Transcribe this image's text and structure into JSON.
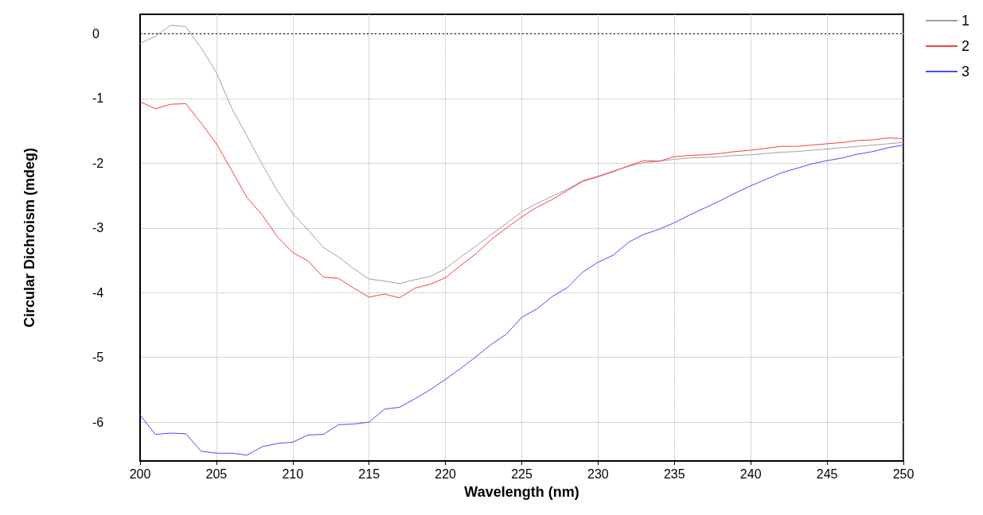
{
  "chart_data": {
    "type": "line",
    "xlabel": "Wavelength (nm)",
    "ylabel": "Circular Dichroism (mdeg)",
    "x": [
      200,
      201,
      202,
      203,
      204,
      205,
      206,
      207,
      208,
      209,
      210,
      211,
      212,
      213,
      214,
      215,
      216,
      217,
      218,
      219,
      220,
      221,
      222,
      223,
      224,
      225,
      226,
      227,
      228,
      229,
      230,
      231,
      232,
      233,
      234,
      235,
      236,
      237,
      238,
      239,
      240,
      241,
      242,
      243,
      244,
      245,
      246,
      247,
      248,
      249,
      250
    ],
    "series": [
      {
        "name": "1",
        "color": "#a0a0a0",
        "values": [
          -0.15,
          -0.04,
          0.13,
          0.11,
          -0.22,
          -0.6,
          -1.15,
          -1.58,
          -2.02,
          -2.43,
          -2.78,
          -3.03,
          -3.3,
          -3.45,
          -3.63,
          -3.79,
          -3.82,
          -3.86,
          -3.8,
          -3.75,
          -3.63,
          -3.45,
          -3.28,
          -3.1,
          -2.93,
          -2.75,
          -2.62,
          -2.51,
          -2.4,
          -2.27,
          -2.2,
          -2.12,
          -2.05,
          -1.99,
          -1.97,
          -1.94,
          -1.92,
          -1.91,
          -1.9,
          -1.88,
          -1.87,
          -1.85,
          -1.83,
          -1.82,
          -1.8,
          -1.78,
          -1.76,
          -1.74,
          -1.72,
          -1.7,
          -1.68
        ]
      },
      {
        "name": "2",
        "color": "#ff3c3c",
        "values": [
          -1.05,
          -1.16,
          -1.09,
          -1.08,
          -1.38,
          -1.7,
          -2.11,
          -2.53,
          -2.8,
          -3.14,
          -3.38,
          -3.51,
          -3.76,
          -3.78,
          -3.93,
          -4.07,
          -4.02,
          -4.08,
          -3.93,
          -3.87,
          -3.77,
          -3.58,
          -3.4,
          -3.18,
          -3.0,
          -2.83,
          -2.68,
          -2.56,
          -2.42,
          -2.28,
          -2.21,
          -2.13,
          -2.04,
          -1.96,
          -1.97,
          -1.9,
          -1.88,
          -1.87,
          -1.85,
          -1.82,
          -1.8,
          -1.77,
          -1.74,
          -1.74,
          -1.72,
          -1.7,
          -1.68,
          -1.65,
          -1.64,
          -1.61,
          -1.62
        ]
      },
      {
        "name": "3",
        "color": "#4b4bff",
        "values": [
          -5.89,
          -6.19,
          -6.17,
          -6.18,
          -6.45,
          -6.48,
          -6.48,
          -6.51,
          -6.38,
          -6.33,
          -6.31,
          -6.2,
          -6.19,
          -6.04,
          -6.03,
          -6.0,
          -5.8,
          -5.77,
          -5.64,
          -5.5,
          -5.34,
          -5.17,
          -4.99,
          -4.8,
          -4.64,
          -4.38,
          -4.25,
          -4.06,
          -3.92,
          -3.68,
          -3.53,
          -3.42,
          -3.22,
          -3.1,
          -3.02,
          -2.92,
          -2.8,
          -2.69,
          -2.58,
          -2.46,
          -2.35,
          -2.25,
          -2.15,
          -2.08,
          -2.01,
          -1.96,
          -1.92,
          -1.86,
          -1.82,
          -1.76,
          -1.72
        ]
      }
    ],
    "xlim": [
      200,
      250
    ],
    "xticks": [
      200,
      205,
      210,
      215,
      220,
      225,
      230,
      235,
      240,
      245,
      250
    ],
    "ylim": [
      -6.6,
      0.3
    ],
    "yticks": [
      -6,
      -5,
      -4,
      -3,
      -2,
      -1,
      0
    ],
    "ref_lines": [
      {
        "axis": "y",
        "value": 0,
        "color": "#000000",
        "line_style": "dotted"
      }
    ],
    "grid": true,
    "legend": "top right",
    "marker": "none",
    "line_style": "solid"
  }
}
